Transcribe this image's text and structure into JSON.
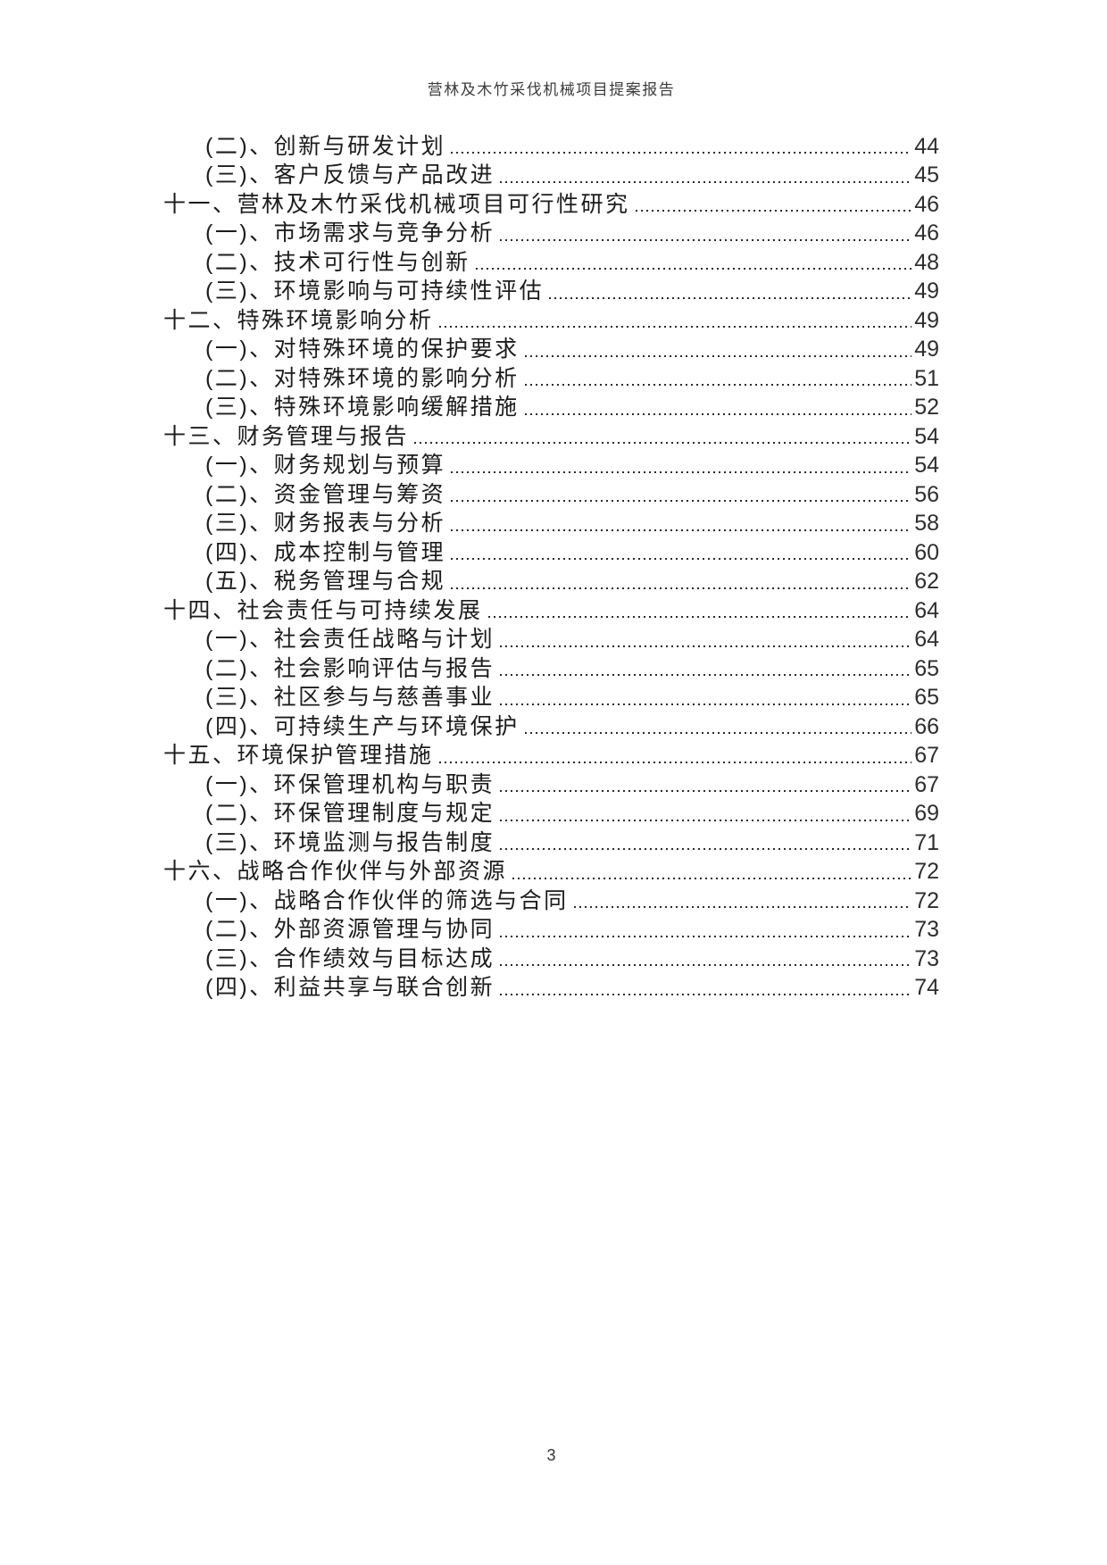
{
  "document": {
    "header_title": "营林及木竹采伐机械项目提案报告",
    "footer_page_number": "3"
  },
  "colors": {
    "text": "#1c1c1c",
    "leader_dots": "#2b2b2b",
    "page_background": "#ffffff"
  },
  "toc": {
    "entries": [
      {
        "label": "(二)、创新与研发计划",
        "page": "44",
        "level": 2
      },
      {
        "label": "(三)、客户反馈与产品改进",
        "page": "45",
        "level": 2
      },
      {
        "label": "十一、营林及木竹采伐机械项目可行性研究",
        "page": "46",
        "level": 1
      },
      {
        "label": "(一)、市场需求与竞争分析",
        "page": "46",
        "level": 2
      },
      {
        "label": "(二)、技术可行性与创新",
        "page": "48",
        "level": 2
      },
      {
        "label": "(三)、环境影响与可持续性评估",
        "page": "49",
        "level": 2
      },
      {
        "label": "十二、特殊环境影响分析",
        "page": "49",
        "level": 1
      },
      {
        "label": "(一)、对特殊环境的保护要求",
        "page": "49",
        "level": 2
      },
      {
        "label": "(二)、对特殊环境的影响分析",
        "page": "51",
        "level": 2
      },
      {
        "label": "(三)、特殊环境影响缓解措施",
        "page": "52",
        "level": 2
      },
      {
        "label": "十三、财务管理与报告",
        "page": "54",
        "level": 1
      },
      {
        "label": "(一)、财务规划与预算",
        "page": "54",
        "level": 2
      },
      {
        "label": "(二)、资金管理与筹资",
        "page": "56",
        "level": 2
      },
      {
        "label": "(三)、财务报表与分析",
        "page": "58",
        "level": 2
      },
      {
        "label": "(四)、成本控制与管理",
        "page": "60",
        "level": 2
      },
      {
        "label": "(五)、税务管理与合规",
        "page": "62",
        "level": 2
      },
      {
        "label": "十四、社会责任与可持续发展",
        "page": "64",
        "level": 1
      },
      {
        "label": "(一)、社会责任战略与计划",
        "page": "64",
        "level": 2
      },
      {
        "label": "(二)、社会影响评估与报告",
        "page": "65",
        "level": 2
      },
      {
        "label": "(三)、社区参与与慈善事业",
        "page": "65",
        "level": 2
      },
      {
        "label": "(四)、可持续生产与环境保护",
        "page": "66",
        "level": 2
      },
      {
        "label": "十五、环境保护管理措施",
        "page": "67",
        "level": 1
      },
      {
        "label": "(一)、环保管理机构与职责",
        "page": "67",
        "level": 2
      },
      {
        "label": "(二)、环保管理制度与规定",
        "page": "69",
        "level": 2
      },
      {
        "label": "(三)、环境监测与报告制度",
        "page": "71",
        "level": 2
      },
      {
        "label": "十六、战略合作伙伴与外部资源",
        "page": "72",
        "level": 1
      },
      {
        "label": "(一)、战略合作伙伴的筛选与合同",
        "page": "72",
        "level": 2
      },
      {
        "label": "(二)、外部资源管理与协同",
        "page": "73",
        "level": 2
      },
      {
        "label": "(三)、合作绩效与目标达成",
        "page": "73",
        "level": 2
      },
      {
        "label": "(四)、利益共享与联合创新",
        "page": "74",
        "level": 2
      }
    ]
  }
}
